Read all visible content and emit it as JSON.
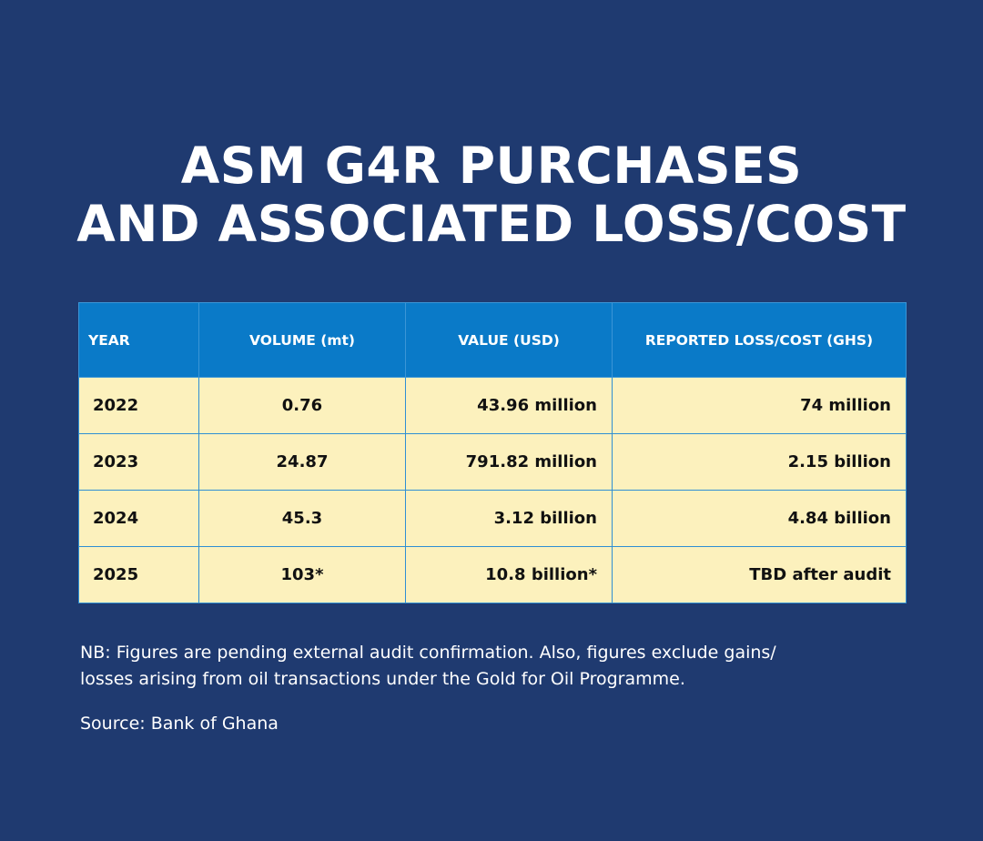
{
  "title": {
    "line1": "ASM G4R PURCHASES",
    "line2": "AND ASSOCIATED LOSS/COST"
  },
  "chart_data": {
    "type": "table",
    "title": "ASM G4R PURCHASES AND ASSOCIATED LOSS/COST",
    "columns": [
      "YEAR",
      "VOLUME (mt)",
      "VALUE (USD)",
      "REPORTED LOSS/COST (GHS)"
    ],
    "rows": [
      [
        "2022",
        "0.76",
        "43.96 million",
        "74 million"
      ],
      [
        "2023",
        "24.87",
        "791.82 million",
        "2.15 billion"
      ],
      [
        "2024",
        "45.3",
        "3.12 billion",
        "4.84 billion"
      ],
      [
        "2025",
        "103*",
        "10.8 billion*",
        "TBD after audit"
      ]
    ]
  },
  "note": {
    "line1": "NB: Figures are pending external audit confirmation. Also, figures exclude gains/",
    "line2": "losses arising from oil transactions under the Gold for Oil Programme."
  },
  "source": "Source: Bank of Ghana",
  "colors": {
    "background": "#1f3a70",
    "header": "#0a7ac8",
    "cell": "#fcf1bd"
  }
}
